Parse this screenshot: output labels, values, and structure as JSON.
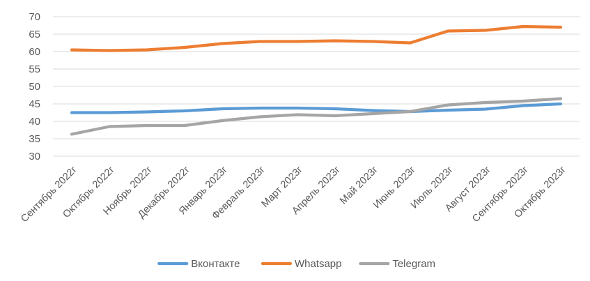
{
  "chart_data": {
    "type": "line",
    "title": "",
    "xlabel": "",
    "ylabel": "",
    "ylim": [
      30,
      70
    ],
    "ytick_step": 5,
    "grid": true,
    "legend_position": "bottom",
    "categories": [
      "Сентябрь 2022г",
      "Октябрь 2022г",
      "Ноябрь 2022г",
      "Декабрь 2022г",
      "Январь 2023г",
      "Февраль 2023г",
      "Март 2023г",
      "Апрель 2023г",
      "Май 2023г",
      "Июнь 2023г",
      "Июль 2023г",
      "Август 2023г",
      "Сентябрь 2023г",
      "Октябрь 2023г"
    ],
    "series": [
      {
        "name": "Вконтакте",
        "color": "#5b9bd5",
        "values": [
          42.5,
          42.5,
          42.7,
          43.0,
          43.6,
          43.8,
          43.8,
          43.6,
          43.1,
          42.8,
          43.2,
          43.5,
          44.5,
          45.0
        ]
      },
      {
        "name": "Whatsapp",
        "color": "#ed7d31",
        "values": [
          60.5,
          60.3,
          60.5,
          61.2,
          62.3,
          62.9,
          62.9,
          63.1,
          62.9,
          62.5,
          65.9,
          66.1,
          67.2,
          67.0
        ]
      },
      {
        "name": "Telegram",
        "color": "#a5a5a5",
        "values": [
          36.3,
          38.5,
          38.8,
          38.8,
          40.2,
          41.3,
          41.9,
          41.6,
          42.2,
          42.8,
          44.7,
          45.4,
          45.8,
          46.5
        ]
      }
    ]
  }
}
